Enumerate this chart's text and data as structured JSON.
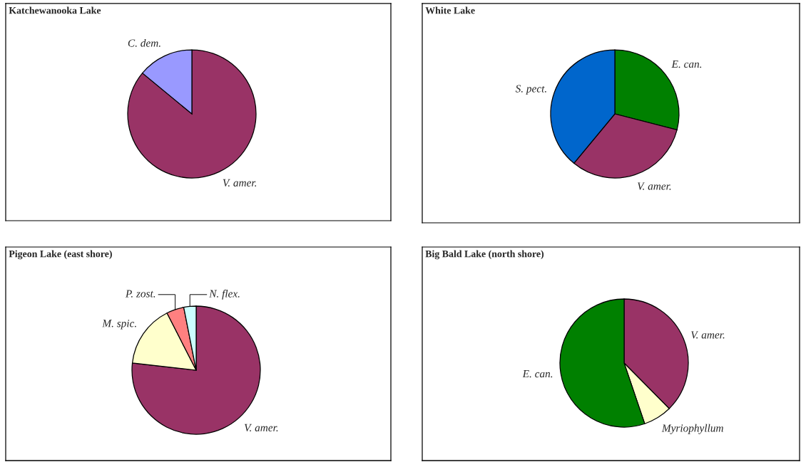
{
  "chart_data": [
    {
      "type": "pie",
      "title": "Katchewanooka Lake",
      "categories": [
        "V. amer.",
        "C. dem."
      ],
      "values": [
        86,
        14
      ],
      "colors": [
        "#993366",
        "#9999ff"
      ]
    },
    {
      "type": "pie",
      "title": "White Lake",
      "categories": [
        "E. can.",
        "V. amer.",
        "S. pect."
      ],
      "values": [
        29,
        32,
        39
      ],
      "colors": [
        "#008000",
        "#993366",
        "#0066cc"
      ]
    },
    {
      "type": "pie",
      "title": "Pigeon Lake (east shore)",
      "categories": [
        "V. amer.",
        "M. spic.",
        "P. zost.",
        "N. flex."
      ],
      "values": [
        76.8,
        15.7,
        4.4,
        3.1
      ],
      "colors": [
        "#993366",
        "#ffffcc",
        "#ff8080",
        "#ccffff"
      ]
    },
    {
      "type": "pie",
      "title": "Big Bald Lake (north shore)",
      "categories": [
        "V. amer.",
        "Myriophyllum",
        "E. can."
      ],
      "values": [
        37.6,
        7.2,
        55.2
      ],
      "colors": [
        "#993366",
        "#ffffcc",
        "#008000"
      ]
    }
  ]
}
